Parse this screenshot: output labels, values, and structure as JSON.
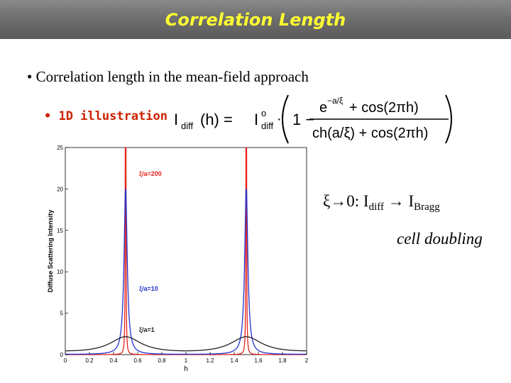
{
  "title": "Correlation Length",
  "bullets": {
    "main": "• Correlation length in the mean-field approach",
    "sub": "• 1D illustration"
  },
  "formula": {
    "lhs_I": "I",
    "lhs_sub": "diff",
    "lhs_arg": "(h) = ",
    "rhs_I": "I",
    "rhs_sup": "o",
    "rhs_sub": "diff",
    "dot": "·",
    "one_minus": "1 −",
    "numerator": "e",
    "numerator_exp": "−a/ξ",
    "numerator_tail": " + cos(2πh)",
    "denominator": "ch(a/ξ) + cos(2πh)"
  },
  "limit_text": {
    "xi": "ξ",
    "arrow1": "→0:  I",
    "sub1": "diff",
    "arrow2": " → I",
    "sub2": "Bragg"
  },
  "note": "cell doubling",
  "chart_data": {
    "type": "line",
    "xlabel": "h",
    "ylabel": "Diffuse Scattering Intensity",
    "xlim": [
      0,
      2
    ],
    "ylim": [
      0,
      25
    ],
    "xticks": [
      "0",
      "0.2",
      "0.4",
      "0.6",
      "0.8",
      "1",
      "1.2",
      "1.4",
      "1.6",
      "1.8",
      "2"
    ],
    "yticks": [
      "0",
      "5",
      "10",
      "15",
      "20",
      "25"
    ],
    "series": [
      {
        "name": "ξ/a=200",
        "xi_over_a": 200,
        "color": "#e8231b"
      },
      {
        "name": "ξ/a=10",
        "xi_over_a": 10,
        "color": "#2233cc"
      },
      {
        "name": "ξ/a=1",
        "xi_over_a": 1,
        "color": "#222222"
      }
    ],
    "colors": {
      "xi200": "#e8231b",
      "xi10": "#2233cc",
      "xi1": "#222222"
    }
  }
}
